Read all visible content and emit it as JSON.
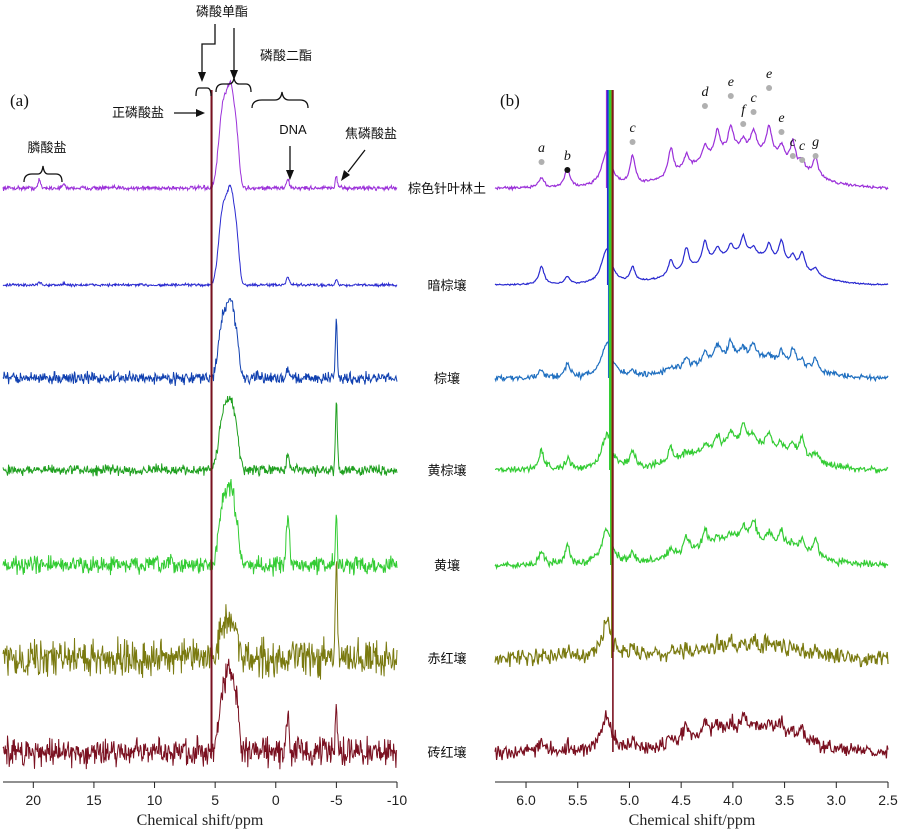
{
  "chart_data": [
    {
      "type": "line",
      "panel_label": "(a)",
      "xlabel": "Chemical shift/ppm",
      "xlim": [
        22.5,
        -10
      ],
      "xticks": [
        20,
        15,
        10,
        5,
        0,
        -5,
        -10
      ],
      "xtick_labels": [
        "20",
        "15",
        "10",
        "5",
        "0",
        "-5",
        "-10"
      ],
      "grid": false,
      "series": [
        {
          "name": "棕色针叶林土",
          "color": "#9b30d9"
        },
        {
          "name": "暗棕壤",
          "color": "#2a2ad0"
        },
        {
          "name": "棕壤",
          "color": "#1040b0"
        },
        {
          "name": "黄棕壤",
          "color": "#20a020"
        },
        {
          "name": "黄壤",
          "color": "#33cc33"
        },
        {
          "name": "赤红壤",
          "color": "#7a7a10"
        },
        {
          "name": "砖红壤",
          "color": "#7a1020"
        }
      ],
      "peaks": {
        "orthophosphate_ppm": 5.3,
        "monoester_ppm": [
          6.0,
          3.0
        ],
        "dna_ppm": -1.0,
        "pyrophosphate_ppm": -5.0,
        "phosphonate_ppm": [
          19.5,
          17.5
        ]
      },
      "relative_peaks": {
        "棕色针叶林土": {
          "monoester": 0.8,
          "dna": 0.08,
          "pyro": 0.12,
          "phosphonate": 0.08,
          "noise": 0.03
        },
        "暗棕壤": {
          "monoester": 0.75,
          "dna": 0.08,
          "pyro": 0.06,
          "phosphonate": 0.03,
          "noise": 0.02
        },
        "棕壤": {
          "monoester": 0.6,
          "dna": 0.1,
          "pyro": 0.55,
          "phosphonate": 0.0,
          "noise": 0.08
        },
        "黄棕壤": {
          "monoester": 0.55,
          "dna": 0.15,
          "pyro": 0.65,
          "phosphonate": 0.0,
          "noise": 0.07
        },
        "黄壤": {
          "monoester": 0.6,
          "dna": 0.5,
          "pyro": 0.5,
          "phosphonate": 0.0,
          "noise": 0.12
        },
        "赤红壤": {
          "monoester": 0.3,
          "dna": 0.0,
          "pyro": 0.9,
          "phosphonate": 0.0,
          "noise": 0.25
        },
        "砖红壤": {
          "monoester": 0.6,
          "dna": 0.35,
          "pyro": 0.4,
          "phosphonate": 0.0,
          "noise": 0.2
        }
      },
      "annotations": {
        "monoester": "磷酸单酯",
        "orthophosphate": "正磷酸盐",
        "diester": "磷酸二酯",
        "dna": "DNA",
        "pyrophosphate": "焦磷酸盐",
        "phosphonate": "膦酸盐"
      }
    },
    {
      "type": "line",
      "panel_label": "(b)",
      "xlabel": "Chemical shift/ppm",
      "xlim": [
        6.3,
        2.5
      ],
      "xticks": [
        6.0,
        5.5,
        5.0,
        4.5,
        4.0,
        3.5,
        3.0,
        2.5
      ],
      "xtick_labels": [
        "6.0",
        "5.5",
        "5.0",
        "4.5",
        "4.0",
        "3.5",
        "3.0",
        "2.5"
      ],
      "grid": false,
      "peak_markers": [
        {
          "letter": "a",
          "ppm": 5.85,
          "dot": "grey"
        },
        {
          "letter": "b",
          "ppm": 5.6,
          "dot": "black"
        },
        {
          "letter": "c",
          "ppm": 4.97,
          "dot": "grey"
        },
        {
          "letter": "d",
          "ppm": 4.27,
          "dot": "grey"
        },
        {
          "letter": "e",
          "ppm": 4.02,
          "dot": "grey"
        },
        {
          "letter": "f",
          "ppm": 3.9,
          "dot": "grey"
        },
        {
          "letter": "c",
          "ppm": 3.8,
          "dot": "grey"
        },
        {
          "letter": "e",
          "ppm": 3.65,
          "dot": "grey"
        },
        {
          "letter": "e",
          "ppm": 3.53,
          "dot": "grey"
        },
        {
          "letter": "c",
          "ppm": 3.42,
          "dot": "grey"
        },
        {
          "letter": "c",
          "ppm": 3.33,
          "dot": "grey"
        },
        {
          "letter": "g",
          "ppm": 3.2,
          "dot": "grey"
        }
      ],
      "series_colors": [
        "#9b30d9",
        "#2a2ad0",
        "#1f6fc0",
        "#33cc33",
        "#33cc33",
        "#7a7a10",
        "#7a1020"
      ]
    }
  ]
}
